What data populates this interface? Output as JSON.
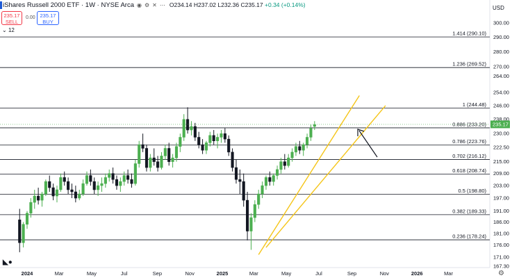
{
  "header": {
    "title": "iShares Russell 2000 ETF · 1W · NYSE Arca",
    "ohlc_open": "O234.14",
    "ohlc_high": "H237.02",
    "ohlc_low": "L232.36",
    "ohlc_close": "C235.17",
    "ohlc_change": "+0.34 (+0.14%)"
  },
  "trade": {
    "sell_price": "235.17",
    "sell_label": "SELL",
    "spread": "0.00",
    "buy_price": "235.17",
    "buy_label": "BUY"
  },
  "indicator_count": "12",
  "currency": "USD",
  "colors": {
    "up": "#4caf50",
    "down": "#131722",
    "channel": "#f5c518",
    "price_tag": "#4caf50",
    "level_line": "#131722"
  },
  "chart_data": {
    "type": "candlestick",
    "x_axis_labels": [
      "2024",
      "Mar",
      "May",
      "Jul",
      "Sep",
      "Nov",
      "2025",
      "Mar",
      "May",
      "Jul",
      "Sep",
      "Nov",
      "2026",
      "Mar"
    ],
    "y_axis_ticks": [
      "300.00",
      "290.00",
      "280.00",
      "270.00",
      "264.00",
      "254.00",
      "246.00",
      "238.00",
      "230.00",
      "222.50",
      "215.00",
      "209.00",
      "203.00",
      "197.00",
      "191.00",
      "186.00",
      "181.00",
      "176.00",
      "171.00",
      "167.30"
    ],
    "y_scale": "log",
    "last_price": "235.17",
    "fib_levels": [
      {
        "ratio": 1.414,
        "price": 290.1,
        "label": "1.414 (290.10)"
      },
      {
        "ratio": 1.236,
        "price": 269.52,
        "label": "1.236 (269.52)"
      },
      {
        "ratio": 1,
        "price": 244.48,
        "label": "1 (244.48)"
      },
      {
        "ratio": 0.886,
        "price": 233.2,
        "label": "0.886 (233.20)"
      },
      {
        "ratio": 0.786,
        "price": 223.76,
        "label": "0.786 (223.76)"
      },
      {
        "ratio": 0.702,
        "price": 216.12,
        "label": "0.702 (216.12)"
      },
      {
        "ratio": 0.618,
        "price": 208.74,
        "label": "0.618 (208.74)"
      },
      {
        "ratio": 0.5,
        "price": 198.8,
        "label": "0.5 (198.80)"
      },
      {
        "ratio": 0.382,
        "price": 189.33,
        "label": "0.382 (189.33)"
      },
      {
        "ratio": 0.236,
        "price": 178.24,
        "label": "0.236 (178.24)"
      }
    ],
    "candles": [
      [
        187,
        192,
        173,
        177
      ],
      [
        177,
        186,
        175,
        185
      ],
      [
        185,
        191,
        183,
        190
      ],
      [
        190,
        197,
        188,
        195
      ],
      [
        195,
        201,
        192,
        198
      ],
      [
        198,
        202,
        194,
        196
      ],
      [
        196,
        200,
        193,
        199
      ],
      [
        199,
        206,
        198,
        205
      ],
      [
        205,
        208,
        200,
        202
      ],
      [
        202,
        204,
        196,
        198
      ],
      [
        198,
        203,
        195,
        201
      ],
      [
        201,
        209,
        200,
        207
      ],
      [
        207,
        210,
        203,
        205
      ],
      [
        205,
        207,
        199,
        201
      ],
      [
        201,
        204,
        197,
        200
      ],
      [
        200,
        203,
        195,
        197
      ],
      [
        197,
        201,
        196,
        199
      ],
      [
        199,
        206,
        198,
        204
      ],
      [
        204,
        210,
        203,
        208
      ],
      [
        208,
        211,
        203,
        205
      ],
      [
        205,
        207,
        199,
        201
      ],
      [
        201,
        205,
        198,
        203
      ],
      [
        203,
        207,
        200,
        204
      ],
      [
        204,
        209,
        202,
        207
      ],
      [
        207,
        211,
        205,
        209
      ],
      [
        209,
        212,
        204,
        206
      ],
      [
        206,
        208,
        201,
        203
      ],
      [
        203,
        207,
        200,
        205
      ],
      [
        205,
        210,
        203,
        208
      ],
      [
        208,
        211,
        204,
        206
      ],
      [
        206,
        209,
        202,
        204
      ],
      [
        204,
        216,
        203,
        214
      ],
      [
        214,
        226,
        212,
        224
      ],
      [
        224,
        230,
        220,
        222
      ],
      [
        222,
        224,
        210,
        212
      ],
      [
        212,
        219,
        210,
        217
      ],
      [
        217,
        222,
        213,
        215
      ],
      [
        215,
        218,
        210,
        212
      ],
      [
        212,
        220,
        211,
        218
      ],
      [
        218,
        224,
        216,
        222
      ],
      [
        222,
        225,
        213,
        215
      ],
      [
        215,
        219,
        212,
        217
      ],
      [
        217,
        225,
        215,
        223
      ],
      [
        223,
        230,
        220,
        228
      ],
      [
        228,
        241,
        226,
        238
      ],
      [
        238,
        245,
        230,
        232
      ],
      [
        232,
        237,
        229,
        234
      ],
      [
        234,
        236,
        226,
        228
      ],
      [
        228,
        231,
        222,
        224
      ],
      [
        224,
        227,
        219,
        221
      ],
      [
        221,
        226,
        219,
        225
      ],
      [
        225,
        231,
        223,
        229
      ],
      [
        229,
        232,
        224,
        226
      ],
      [
        226,
        230,
        222,
        228
      ],
      [
        228,
        232,
        225,
        230
      ],
      [
        230,
        233,
        225,
        227
      ],
      [
        227,
        229,
        218,
        220
      ],
      [
        220,
        222,
        210,
        212
      ],
      [
        212,
        216,
        204,
        206
      ],
      [
        206,
        211,
        199,
        205
      ],
      [
        205,
        209,
        193,
        196
      ],
      [
        196,
        200,
        178,
        182
      ],
      [
        182,
        190,
        174,
        188
      ],
      [
        188,
        196,
        186,
        194
      ],
      [
        194,
        201,
        192,
        199
      ],
      [
        199,
        205,
        197,
        203
      ],
      [
        203,
        208,
        201,
        207
      ],
      [
        207,
        210,
        203,
        205
      ],
      [
        205,
        209,
        203,
        208
      ],
      [
        208,
        213,
        206,
        211
      ],
      [
        211,
        217,
        209,
        215
      ],
      [
        215,
        219,
        211,
        213
      ],
      [
        213,
        219,
        212,
        217
      ],
      [
        217,
        222,
        215,
        220
      ],
      [
        220,
        225,
        218,
        223
      ],
      [
        223,
        226,
        219,
        221
      ],
      [
        221,
        225,
        218,
        224
      ],
      [
        224,
        230,
        222,
        228
      ],
      [
        228,
        235,
        226,
        233
      ],
      [
        234,
        237,
        232,
        235
      ]
    ],
    "channel": [
      {
        "from": {
          "date": "2025-03-10",
          "price": 172.0
        },
        "to": {
          "date": "2025-09-15",
          "price": 252.0
        }
      },
      {
        "from": {
          "date": "2025-03-24",
          "price": 175.0
        },
        "to": {
          "date": "2025-11-03",
          "price": 246.0
        }
      }
    ],
    "annotation": "arrow",
    "grid": false,
    "legend": "none"
  }
}
